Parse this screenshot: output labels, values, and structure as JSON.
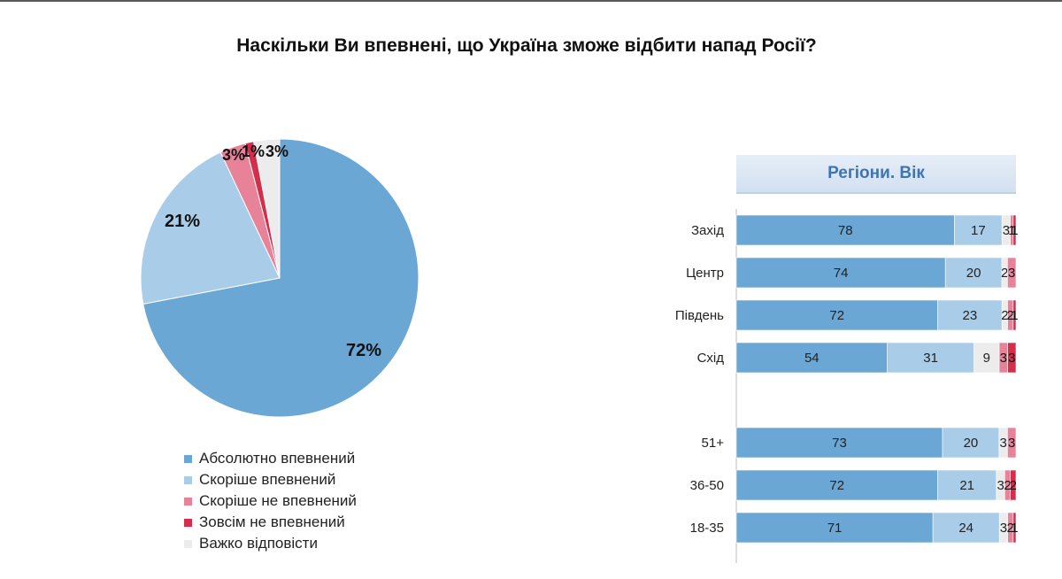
{
  "title": "Наскільки Ви впевнені, що Україна зможе відбити напад Росії?",
  "colors": {
    "absolutely": "#6aa7d4",
    "rather": "#a9cde9",
    "rather_not": "#e88298",
    "not_at_all": "#d52e4c",
    "hard_to_say": "#ececec"
  },
  "chart_data": [
    {
      "type": "pie",
      "slices": [
        {
          "label": "Абсолютно впевнений",
          "value": 72,
          "display": "72%",
          "color": "#6aa7d4"
        },
        {
          "label": "Скоріше впевнений",
          "value": 21,
          "display": "21%",
          "color": "#a9cde9"
        },
        {
          "label": "Скоріше не впевнений",
          "value": 3,
          "display": "3%",
          "color": "#e88298"
        },
        {
          "label": "Зовсім не впевнений",
          "value": 1,
          "display": "1%",
          "color": "#d52e4c"
        },
        {
          "label": "Важко відповісти",
          "value": 3,
          "display": "3%",
          "color": "#ececec"
        }
      ],
      "legend": [
        "Абсолютно впевнений",
        "Скоріше впевнений",
        "Скоріше не впевнений",
        "Зовсім не впевнений",
        "Важко відповісти"
      ]
    },
    {
      "type": "bar",
      "stacked": true,
      "orientation": "horizontal",
      "header": "Регіони. Вік",
      "groups": [
        {
          "categories": [
            "Захід",
            "Центр",
            "Південь",
            "Схід"
          ]
        },
        {
          "categories": [
            "51+",
            "36-50",
            "18-35"
          ]
        }
      ],
      "categories": [
        "Захід",
        "Центр",
        "Південь",
        "Схід",
        "51+",
        "36-50",
        "18-35"
      ],
      "series": [
        {
          "name": "Абсолютно впевнений",
          "color": "#6aa7d4",
          "values": [
            78,
            74,
            72,
            54,
            73,
            72,
            71
          ]
        },
        {
          "name": "Скоріше впевнений",
          "color": "#a9cde9",
          "values": [
            17,
            20,
            23,
            31,
            20,
            21,
            24
          ]
        },
        {
          "name": "Важко відповісти",
          "color": "#ececec",
          "values": [
            3,
            2,
            2,
            9,
            3,
            3,
            3
          ]
        },
        {
          "name": "Скоріше не впевнений",
          "color": "#e88298",
          "values": [
            1,
            3,
            2,
            3,
            3,
            2,
            2
          ]
        },
        {
          "name": "Зовсім не впевнений",
          "color": "#d52e4c",
          "values": [
            1,
            0,
            1,
            3,
            0,
            2,
            1
          ]
        }
      ]
    }
  ]
}
